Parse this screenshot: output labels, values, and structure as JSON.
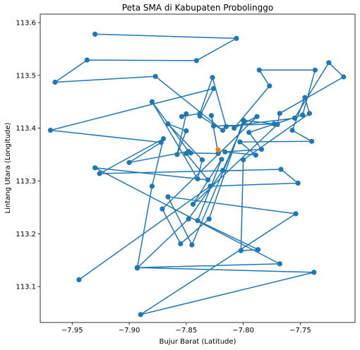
{
  "chart_data": {
    "type": "line",
    "title": "Peta SMA di Kabupaten Probolinggo",
    "xlabel": "Bujur Barat (Latitude)",
    "ylabel": "Lintang Utara (Longitude)",
    "xlim": [
      -7.978,
      -7.702
    ],
    "ylim": [
      113.032,
      113.616
    ],
    "xticks": [
      -7.95,
      -7.9,
      -7.85,
      -7.8,
      -7.75
    ],
    "xtick_labels": [
      "−7.95",
      "−7.90",
      "−7.85",
      "−7.80",
      "−7.75"
    ],
    "yticks": [
      113.1,
      113.2,
      113.3,
      113.4,
      113.5,
      113.6
    ],
    "ytick_labels": [
      "113.1",
      "113.2",
      "113.3",
      "113.4",
      "113.5",
      "113.6"
    ],
    "grid": false,
    "colors": {
      "series": "#1f77b4",
      "highlight": "#ff7f0e"
    },
    "series": [
      {
        "marker": "circle",
        "x": [
          -7.93,
          -7.806,
          -7.841,
          -7.937,
          -7.965,
          -7.877,
          -7.818,
          -7.838,
          -7.826,
          -7.969,
          -7.872,
          -7.9,
          -7.848,
          -7.88,
          -7.84,
          -7.836,
          -7.866,
          -7.85,
          -7.858,
          -7.85,
          -7.854,
          -7.838,
          -7.827,
          -7.815,
          -7.755,
          -7.725,
          -7.712,
          -7.768,
          -7.77,
          -7.844,
          -7.819,
          -7.84,
          -7.787,
          -7.802,
          -7.8,
          -7.742,
          -7.746,
          -7.757,
          -7.74,
          -7.803,
          -7.789,
          -7.816,
          -7.784,
          -7.795,
          -7.748,
          -7.737,
          -7.786,
          -7.777,
          -7.808,
          -7.788,
          -7.871,
          -7.855,
          -7.83,
          -7.8,
          -7.773,
          -7.826,
          -7.828,
          -7.822,
          -7.846,
          -7.85,
          -7.831,
          -7.93,
          -7.768,
          -7.893,
          -7.738,
          -7.89,
          -7.754,
          -7.866,
          -7.845,
          -7.799,
          -7.818,
          -7.848,
          -7.893,
          -7.88,
          -7.87,
          -7.926,
          -7.767,
          -7.752,
          -7.829,
          -7.944
        ],
        "y": [
          113.578,
          113.57,
          113.528,
          113.529,
          113.487,
          113.498,
          113.396,
          113.423,
          113.475,
          113.396,
          113.373,
          113.335,
          113.356,
          113.45,
          113.304,
          113.34,
          113.408,
          113.395,
          113.35,
          113.427,
          113.422,
          113.428,
          113.496,
          113.403,
          113.419,
          113.524,
          113.497,
          113.428,
          113.407,
          113.256,
          113.341,
          113.225,
          113.17,
          113.168,
          113.34,
          113.428,
          113.458,
          113.396,
          113.375,
          113.374,
          113.349,
          113.355,
          113.36,
          113.392,
          113.425,
          113.51,
          113.51,
          113.48,
          113.4,
          113.422,
          113.247,
          113.181,
          113.228,
          113.415,
          113.408,
          113.404,
          113.424,
          113.352,
          113.353,
          113.352,
          113.302,
          113.325,
          113.143,
          113.136,
          113.127,
          113.047,
          113.238,
          113.27,
          113.179,
          113.413,
          113.32,
          113.228,
          113.135,
          113.29,
          113.38,
          113.314,
          113.322,
          113.296,
          113.29,
          113.113
        ]
      },
      {
        "marker": "circle",
        "x": [
          -7.822
        ],
        "y": [
          113.359
        ]
      }
    ]
  }
}
